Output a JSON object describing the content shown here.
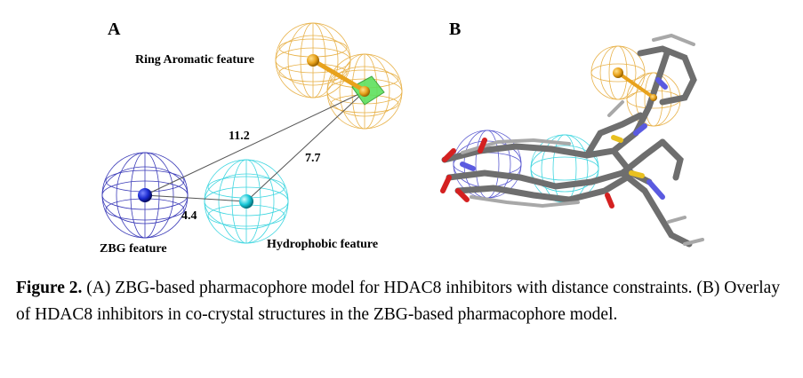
{
  "panels": {
    "a": {
      "letter": "A",
      "features": {
        "ring_aromatic": "Ring Aromatic feature",
        "zbg": "ZBG  feature",
        "hydrophobic": "Hydrophobic feature"
      },
      "distances": {
        "zbg_to_ring": "11.2",
        "hydrophobic_to_ring": "7.7",
        "zbg_to_hydrophobic": "4.4"
      },
      "colors": {
        "ring_aromatic": "#e8b24a",
        "zbg": "#3a3ab8",
        "hydrophobic": "#3fd6e0",
        "aromatic_plane": "#5ee05e"
      }
    },
    "b": {
      "letter": "B"
    }
  },
  "caption": {
    "label": "Figure 2.",
    "text": " (A) ZBG-based pharmacophore model for HDAC8 inhibitors with distance constraints. (B) Overlay of HDAC8 inhibitors in co-crystal structures in the ZBG-based pharmacophore model."
  }
}
